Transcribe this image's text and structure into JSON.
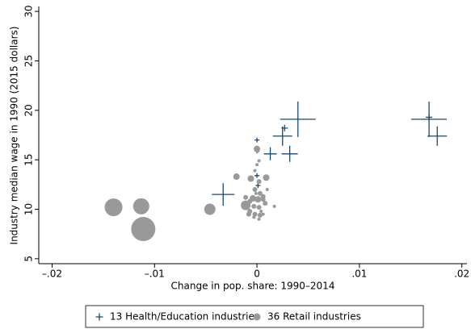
{
  "chart_data": {
    "type": "scatter",
    "xlabel": "Change in pop. share: 1990–2014",
    "ylabel": "Industry median wage in 1990 (2015 dollars)",
    "xlim": [
      -0.0213,
      0.0205
    ],
    "ylim": [
      4.5,
      30.5
    ],
    "xticks": [
      {
        "value": -0.02,
        "label": "–.02"
      },
      {
        "value": -0.01,
        "label": "–.01"
      },
      0,
      {
        "value": 0.01,
        "label": ".01"
      },
      {
        "value": 0.02,
        "label": ".02"
      }
    ],
    "yticks": [
      5,
      10,
      15,
      20,
      25,
      30
    ],
    "grid": false,
    "legend": "bottom",
    "series": [
      {
        "name": "13 Health/Education industries",
        "marker": "plus",
        "color": "#1a476f",
        "x": [
          0.004,
          0.0168,
          0.0176,
          0.0025,
          0.0027,
          0.0,
          0.0013,
          0.0032,
          -0.0033,
          0.0001,
          0.0,
          0.0,
          0.0168
        ],
        "values": [
          19.1,
          19.1,
          17.4,
          17.4,
          18.2,
          17.0,
          15.6,
          15.6,
          11.5,
          12.4,
          13.4,
          15.9,
          19.3
        ],
        "sizes": [
          484,
          484,
          144,
          144,
          16,
          9,
          64,
          100,
          196,
          9,
          9,
          9,
          16
        ]
      },
      {
        "name": "36 Retail industries",
        "marker": "circle",
        "color": "#999999",
        "x": [
          -0.0111,
          -0.014,
          -0.0113,
          -0.0046,
          -0.0011,
          0.0,
          0.0009,
          -0.002,
          -0.0006,
          0.0001,
          0.0002,
          0.0,
          -0.0002,
          0.0002,
          -0.0002,
          0.0003,
          0.0006,
          -0.0004,
          0.0001,
          0.0006,
          -0.0007,
          0.0017,
          0.0008,
          -0.0003,
          0.0002,
          -0.0007,
          -0.0002,
          0.0003,
          -0.0008,
          -0.0003,
          -0.0011,
          0.001,
          0.0004,
          -0.0001,
          0.0006,
          0.0002
        ],
        "values": [
          8.0,
          10.2,
          10.3,
          10.0,
          10.4,
          16.1,
          13.2,
          13.3,
          13.1,
          15.9,
          14.9,
          14.5,
          13.9,
          12.8,
          12.0,
          11.6,
          11.3,
          11.1,
          11.0,
          11.0,
          10.8,
          10.3,
          10.6,
          10.3,
          10.2,
          9.8,
          9.5,
          9.4,
          9.5,
          9.2,
          11.2,
          12.0,
          9.8,
          11.6,
          9.5,
          9.0
        ],
        "sizes": [
          225,
          121,
          100,
          49,
          36,
          16,
          16,
          16,
          16,
          4,
          4,
          4,
          4,
          9,
          9,
          9,
          9,
          16,
          16,
          9,
          9,
          4,
          9,
          9,
          9,
          9,
          9,
          9,
          9,
          4,
          9,
          4,
          4,
          4,
          4,
          4
        ]
      }
    ]
  }
}
